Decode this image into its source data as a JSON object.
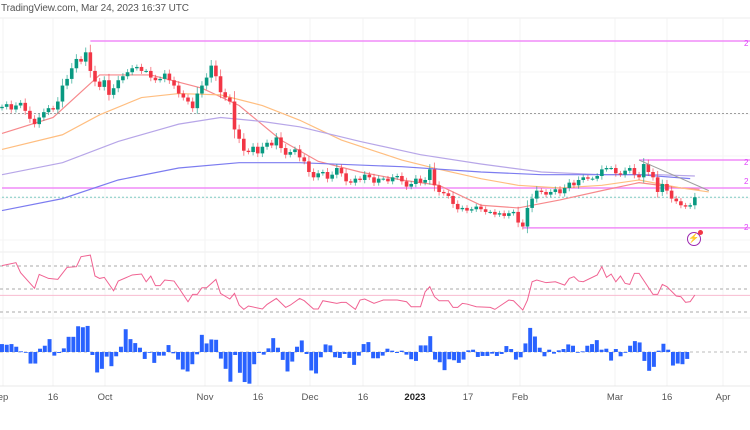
{
  "header": {
    "title": "TradingView.com, Mar 24, 2023 16:37 UTC"
  },
  "colors": {
    "up": "#089981",
    "down": "#F23645",
    "histogram": "#2962FF",
    "level_lines": "#F08CF8",
    "rsi": "#F06292",
    "ma_fast": "#F7898C",
    "ma_mid": "#FFBE80",
    "ma_slow": "#B7A6E8",
    "ma_long": "#7C7CF0"
  },
  "x_axis": {
    "labels": [
      {
        "text": "ep",
        "bold": false
      },
      {
        "text": "16",
        "bold": false
      },
      {
        "text": "Oct",
        "bold": false
      },
      {
        "text": "Nov",
        "bold": false
      },
      {
        "text": "16",
        "bold": false
      },
      {
        "text": "Dec",
        "bold": false
      },
      {
        "text": "16",
        "bold": false
      },
      {
        "text": "2023",
        "bold": true
      },
      {
        "text": "17",
        "bold": false
      },
      {
        "text": "Feb",
        "bold": false
      },
      {
        "text": "Mar",
        "bold": false
      },
      {
        "text": "16",
        "bold": false
      },
      {
        "text": "Apr",
        "bold": false
      }
    ]
  },
  "right_axis_clipped_labels": [
    "2",
    "2",
    "2",
    "2"
  ],
  "icons": {
    "alert": "lightning-icon"
  },
  "chart_data": {
    "type": "candlestick",
    "closes": [
      109.9,
      110.1,
      109.7,
      110.0,
      110.2,
      109.6,
      109.0,
      108.6,
      109.1,
      109.5,
      109.8,
      109.7,
      110.3,
      111.5,
      112.0,
      112.8,
      113.5,
      113.3,
      114.0,
      112.6,
      111.8,
      111.4,
      111.9,
      110.8,
      111.3,
      111.9,
      112.2,
      112.5,
      112.8,
      112.9,
      112.6,
      112.6,
      112.1,
      111.9,
      112.0,
      112.4,
      111.9,
      111.5,
      110.9,
      110.6,
      110.3,
      109.8,
      110.9,
      111.5,
      112.1,
      113.0,
      112.2,
      111.0,
      110.6,
      110.3,
      108.2,
      107.5,
      106.6,
      106.5,
      106.9,
      106.4,
      106.9,
      107.2,
      107.0,
      107.6,
      106.8,
      106.3,
      106.5,
      106.7,
      106.1,
      105.8,
      105.0,
      104.6,
      104.9,
      105.0,
      104.5,
      104.8,
      105.3,
      104.9,
      104.3,
      104.2,
      104.5,
      104.4,
      104.8,
      104.6,
      104.2,
      104.5,
      104.5,
      104.3,
      104.6,
      104.7,
      104.3,
      103.9,
      104.1,
      104.5,
      104.2,
      104.4,
      105.2,
      104.0,
      103.5,
      103.4,
      103.2,
      102.6,
      102.2,
      102.3,
      102.1,
      102.2,
      102.4,
      102.2,
      102.0,
      102.0,
      101.8,
      101.9,
      101.7,
      101.9,
      102.0,
      101.2,
      100.9,
      102.3,
      103.0,
      103.6,
      103.5,
      103.3,
      103.5,
      103.7,
      103.4,
      103.8,
      104.2,
      104.0,
      104.4,
      104.6,
      104.5,
      104.5,
      104.7,
      105.2,
      105.3,
      105.3,
      104.9,
      104.8,
      105.1,
      105.3,
      104.8,
      104.6,
      105.6,
      105.0,
      104.6,
      103.5,
      104.1,
      103.6,
      103.0,
      102.8,
      102.5,
      102.4,
      102.5,
      103.1
    ],
    "first_open": 109.8,
    "moving_averages": [
      {
        "color_key": "ma_fast",
        "points": [
          [
            0,
            107.9
          ],
          [
            11,
            109.1
          ],
          [
            21,
            112.3
          ],
          [
            32,
            112.3
          ],
          [
            43,
            111.3
          ],
          [
            51,
            110.0
          ],
          [
            60,
            107.4
          ],
          [
            68,
            105.8
          ],
          [
            77,
            105.0
          ],
          [
            86,
            104.4
          ],
          [
            94,
            104.0
          ],
          [
            103,
            102.5
          ],
          [
            111,
            102.3
          ],
          [
            120,
            102.9
          ],
          [
            129,
            103.6
          ],
          [
            137,
            104.2
          ],
          [
            146,
            103.8
          ],
          [
            150,
            103.7
          ]
        ]
      },
      {
        "color_key": "ma_mid",
        "points": [
          [
            0,
            106.7
          ],
          [
            13,
            107.8
          ],
          [
            21,
            109.3
          ],
          [
            30,
            110.6
          ],
          [
            38,
            110.9
          ],
          [
            47,
            110.8
          ],
          [
            56,
            110.0
          ],
          [
            64,
            108.9
          ],
          [
            73,
            107.4
          ],
          [
            86,
            105.9
          ],
          [
            94,
            105.2
          ],
          [
            103,
            104.5
          ],
          [
            111,
            104.0
          ],
          [
            120,
            103.8
          ],
          [
            129,
            104.0
          ],
          [
            137,
            104.4
          ],
          [
            146,
            103.8
          ],
          [
            152,
            103.5
          ]
        ]
      },
      {
        "color_key": "ma_slow",
        "points": [
          [
            0,
            104.8
          ],
          [
            13,
            105.7
          ],
          [
            25,
            107.3
          ],
          [
            38,
            108.6
          ],
          [
            47,
            109.1
          ],
          [
            56,
            108.8
          ],
          [
            64,
            108.4
          ],
          [
            77,
            107.3
          ],
          [
            90,
            106.3
          ],
          [
            103,
            105.6
          ],
          [
            116,
            105.0
          ],
          [
            129,
            104.8
          ],
          [
            141,
            104.8
          ],
          [
            149,
            104.7
          ]
        ]
      },
      {
        "color_key": "ma_long",
        "points": [
          [
            0,
            102.1
          ],
          [
            13,
            103.0
          ],
          [
            25,
            104.4
          ],
          [
            38,
            105.3
          ],
          [
            51,
            105.7
          ],
          [
            64,
            105.7
          ],
          [
            86,
            105.4
          ],
          [
            103,
            105.0
          ],
          [
            116,
            104.8
          ],
          [
            129,
            104.8
          ],
          [
            137,
            104.8
          ],
          [
            148,
            104.5
          ]
        ]
      }
    ],
    "levels": [
      {
        "value": 114.85,
        "from_bar": 19,
        "style": "solid",
        "color_key": "level_lines"
      },
      {
        "value": 105.9,
        "from_bar": 137,
        "style": "solid",
        "color_key": "level_lines"
      },
      {
        "value": 103.8,
        "from_bar": 0,
        "style": "solid",
        "color_key": "level_lines"
      },
      {
        "value": 100.8,
        "from_bar": 112,
        "style": "solid",
        "color_key": "level_lines"
      },
      {
        "value": 109.4,
        "from_bar": 0,
        "style": "dotted",
        "color": "#9e9e9e"
      },
      {
        "value": 103.1,
        "from_bar": 0,
        "style": "dotted",
        "color": "#80cbc4"
      }
    ],
    "trendline": {
      "from": [
        137,
        105.9
      ],
      "to": [
        152,
        103.6
      ],
      "color": "#9e9e9e"
    },
    "rsi": {
      "levels": [
        70,
        50,
        30
      ],
      "signal_level": 44.5,
      "points": [
        [
          0,
          70.3
        ],
        [
          3,
          72.9
        ],
        [
          4,
          64.2
        ],
        [
          7,
          50.6
        ],
        [
          8,
          62.7
        ],
        [
          10,
          59.2
        ],
        [
          12,
          58.4
        ],
        [
          14,
          68.8
        ],
        [
          16,
          69.4
        ],
        [
          17,
          78.1
        ],
        [
          19,
          79.5
        ],
        [
          20,
          61.3
        ],
        [
          21,
          59.2
        ],
        [
          22,
          60.1
        ],
        [
          24,
          48.5
        ],
        [
          25,
          56.9
        ],
        [
          28,
          62.2
        ],
        [
          30,
          63.0
        ],
        [
          31,
          56.3
        ],
        [
          32,
          61.3
        ],
        [
          33,
          52.9
        ],
        [
          34,
          52.9
        ],
        [
          35,
          57.8
        ],
        [
          37,
          56.9
        ],
        [
          38,
          51.1
        ],
        [
          40,
          38.9
        ],
        [
          41,
          45.3
        ],
        [
          42,
          45.3
        ],
        [
          43,
          51.1
        ],
        [
          44,
          51.1
        ],
        [
          46,
          58.4
        ],
        [
          47,
          46.2
        ],
        [
          49,
          41.3
        ],
        [
          50,
          46.2
        ],
        [
          51,
          36.0
        ],
        [
          52,
          32.3
        ],
        [
          53,
          35.2
        ],
        [
          56,
          32.6
        ],
        [
          57,
          36.6
        ],
        [
          59,
          41.8
        ],
        [
          61,
          34.0
        ],
        [
          62,
          36.0
        ],
        [
          64,
          41.8
        ],
        [
          65,
          39.8
        ],
        [
          67,
          32.6
        ],
        [
          68,
          32.6
        ],
        [
          69,
          39.8
        ],
        [
          72,
          37.5
        ],
        [
          73,
          38.4
        ],
        [
          74,
          38.4
        ],
        [
          76,
          32.3
        ],
        [
          77,
          40.4
        ],
        [
          78,
          41.3
        ],
        [
          80,
          37.5
        ],
        [
          82,
          40.4
        ],
        [
          85,
          40.4
        ],
        [
          87,
          38.9
        ],
        [
          88,
          34.6
        ],
        [
          90,
          34.6
        ],
        [
          91,
          47.6
        ],
        [
          92,
          52.0
        ],
        [
          93,
          43.3
        ],
        [
          94,
          39.8
        ],
        [
          96,
          39.8
        ],
        [
          97,
          34.0
        ],
        [
          98,
          34.0
        ],
        [
          99,
          37.5
        ],
        [
          100,
          36.9
        ],
        [
          102,
          34.6
        ],
        [
          105,
          34.0
        ],
        [
          106,
          32.3
        ],
        [
          109,
          40.4
        ],
        [
          110,
          39.8
        ],
        [
          112,
          31.7
        ],
        [
          113,
          40.4
        ],
        [
          114,
          56.3
        ],
        [
          115,
          57.8
        ],
        [
          117,
          55.5
        ],
        [
          119,
          56.3
        ],
        [
          121,
          53.4
        ],
        [
          122,
          59.2
        ],
        [
          123,
          60.7
        ],
        [
          124,
          56.9
        ],
        [
          125,
          56.3
        ],
        [
          128,
          62.2
        ],
        [
          129,
          69.4
        ],
        [
          130,
          60.1
        ],
        [
          131,
          63.0
        ],
        [
          132,
          56.3
        ],
        [
          133,
          61.3
        ],
        [
          134,
          54.9
        ],
        [
          135,
          54.0
        ],
        [
          136,
          63.6
        ],
        [
          137,
          63.6
        ],
        [
          140,
          45.3
        ],
        [
          141,
          45.3
        ],
        [
          142,
          54.0
        ],
        [
          143,
          52.0
        ],
        [
          145,
          43.9
        ],
        [
          146,
          43.3
        ],
        [
          147,
          38.4
        ],
        [
          148,
          39.0
        ],
        [
          149,
          44.8
        ]
      ]
    },
    "histogram": [
      2.4,
      2.2,
      2.4,
      1.6,
      0.2,
      -0.2,
      -3.5,
      -3.5,
      1.0,
      1.9,
      3.9,
      -1.1,
      -0.3,
      1.1,
      4.6,
      4.6,
      7.8,
      7.5,
      7.9,
      -0.9,
      -6.2,
      -5.1,
      -1.4,
      -4.3,
      -1.3,
      1.6,
      6.9,
      3.9,
      2.7,
      1.3,
      -2.1,
      0,
      -3.3,
      -1.1,
      -1.1,
      2.1,
      -0.4,
      -2.3,
      -5.3,
      -5.9,
      -3.7,
      -0.7,
      5.2,
      2.6,
      3.8,
      3.7,
      -2.0,
      -5.1,
      -9.0,
      -0.9,
      -6.3,
      -9.1,
      -9.6,
      -3.7,
      -0.3,
      -0.8,
      1.1,
      4.2,
      1.3,
      -2.4,
      -5.9,
      -2.9,
      1.6,
      3.5,
      -0.6,
      -5.6,
      -6.5,
      -1.6,
      2.3,
      2.0,
      -1.6,
      -1.8,
      -0.6,
      -1.8,
      -3.9,
      -1.1,
      2.4,
      3.0,
      -1.9,
      -1.9,
      -1.1,
      1.0,
      0.4,
      -0.3,
      0.4,
      -0.8,
      -2.2,
      -2.7,
      2.0,
      2.0,
      4.8,
      -2.3,
      -3.1,
      -5.5,
      -2.2,
      -2.5,
      -3.3,
      -2.3,
      0.5,
      0.7,
      -1.5,
      -1.2,
      -1.2,
      -0.5,
      -1.2,
      -0.6,
      1.8,
      0.9,
      -2.3,
      -1.6,
      2.6,
      7.3,
      4.7,
      1.3,
      -1.3,
      0.7,
      -0.5,
      0.5,
      0.9,
      2.3,
      1.9,
      -0.2,
      0.2,
      1.9,
      2.4,
      3.6,
      0.7,
      1.0,
      -2.6,
      0.9,
      -1.3,
      0,
      1.9,
      3.3,
      2.9,
      -2.7,
      -5.7,
      -4.5,
      0.4,
      2.5,
      0.7,
      -4.1,
      -3.5,
      -3.7,
      -2.1
    ]
  }
}
